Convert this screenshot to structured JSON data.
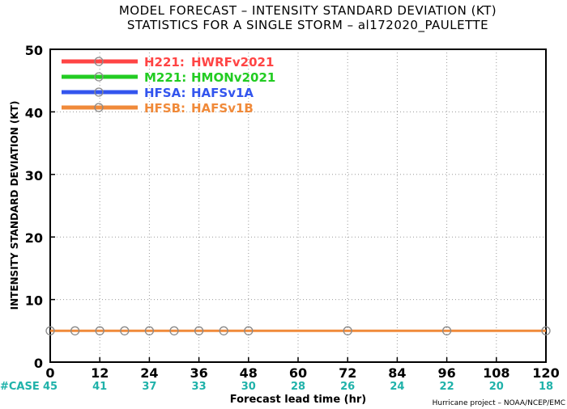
{
  "title_line1": "MODEL FORECAST – INTENSITY STANDARD DEVIATION (KT)",
  "title_line2": "STATISTICS FOR A SINGLE STORM – al172020_PAULETTE",
  "credit": "Hurricane project – NOAA/NCEP/EMC",
  "case_label": "#CASE",
  "case_color": "#20b2aa",
  "chart_data": {
    "type": "line",
    "title": "MODEL FORECAST – INTENSITY STANDARD DEVIATION (KT)",
    "subtitle": "STATISTICS FOR A SINGLE STORM – al172020_PAULETTE",
    "xlabel": "Forecast lead time (hr)",
    "ylabel": "INTENSITY STANDARD DEVIATION (KT)",
    "xlim": [
      0,
      120
    ],
    "ylim": [
      0,
      50
    ],
    "x_ticks": [
      0,
      12,
      24,
      36,
      48,
      60,
      72,
      84,
      96,
      108,
      120
    ],
    "y_ticks": [
      0,
      10,
      20,
      30,
      40,
      50
    ],
    "grid": true,
    "legend_position": "top-left",
    "case_counts": [
      45,
      41,
      37,
      33,
      30,
      28,
      26,
      24,
      22,
      20,
      18
    ],
    "series": [
      {
        "name": "H221:",
        "label": "HWRFv2021",
        "color": "#ff4444",
        "x": [],
        "y": []
      },
      {
        "name": "M221:",
        "label": "HMONv2021",
        "color": "#22cc22",
        "x": [],
        "y": []
      },
      {
        "name": "HFSA:",
        "label": "HAFSv1A",
        "color": "#3355ee",
        "x": [],
        "y": []
      },
      {
        "name": "HFSB:",
        "label": "HAFSv1B",
        "color": "#f08a3a",
        "x": [
          0,
          6,
          12,
          18,
          24,
          30,
          36,
          42,
          48,
          72,
          96,
          120
        ],
        "y": [
          5,
          5,
          5,
          5,
          5,
          5,
          5,
          5,
          5,
          5,
          5,
          5
        ]
      }
    ]
  }
}
